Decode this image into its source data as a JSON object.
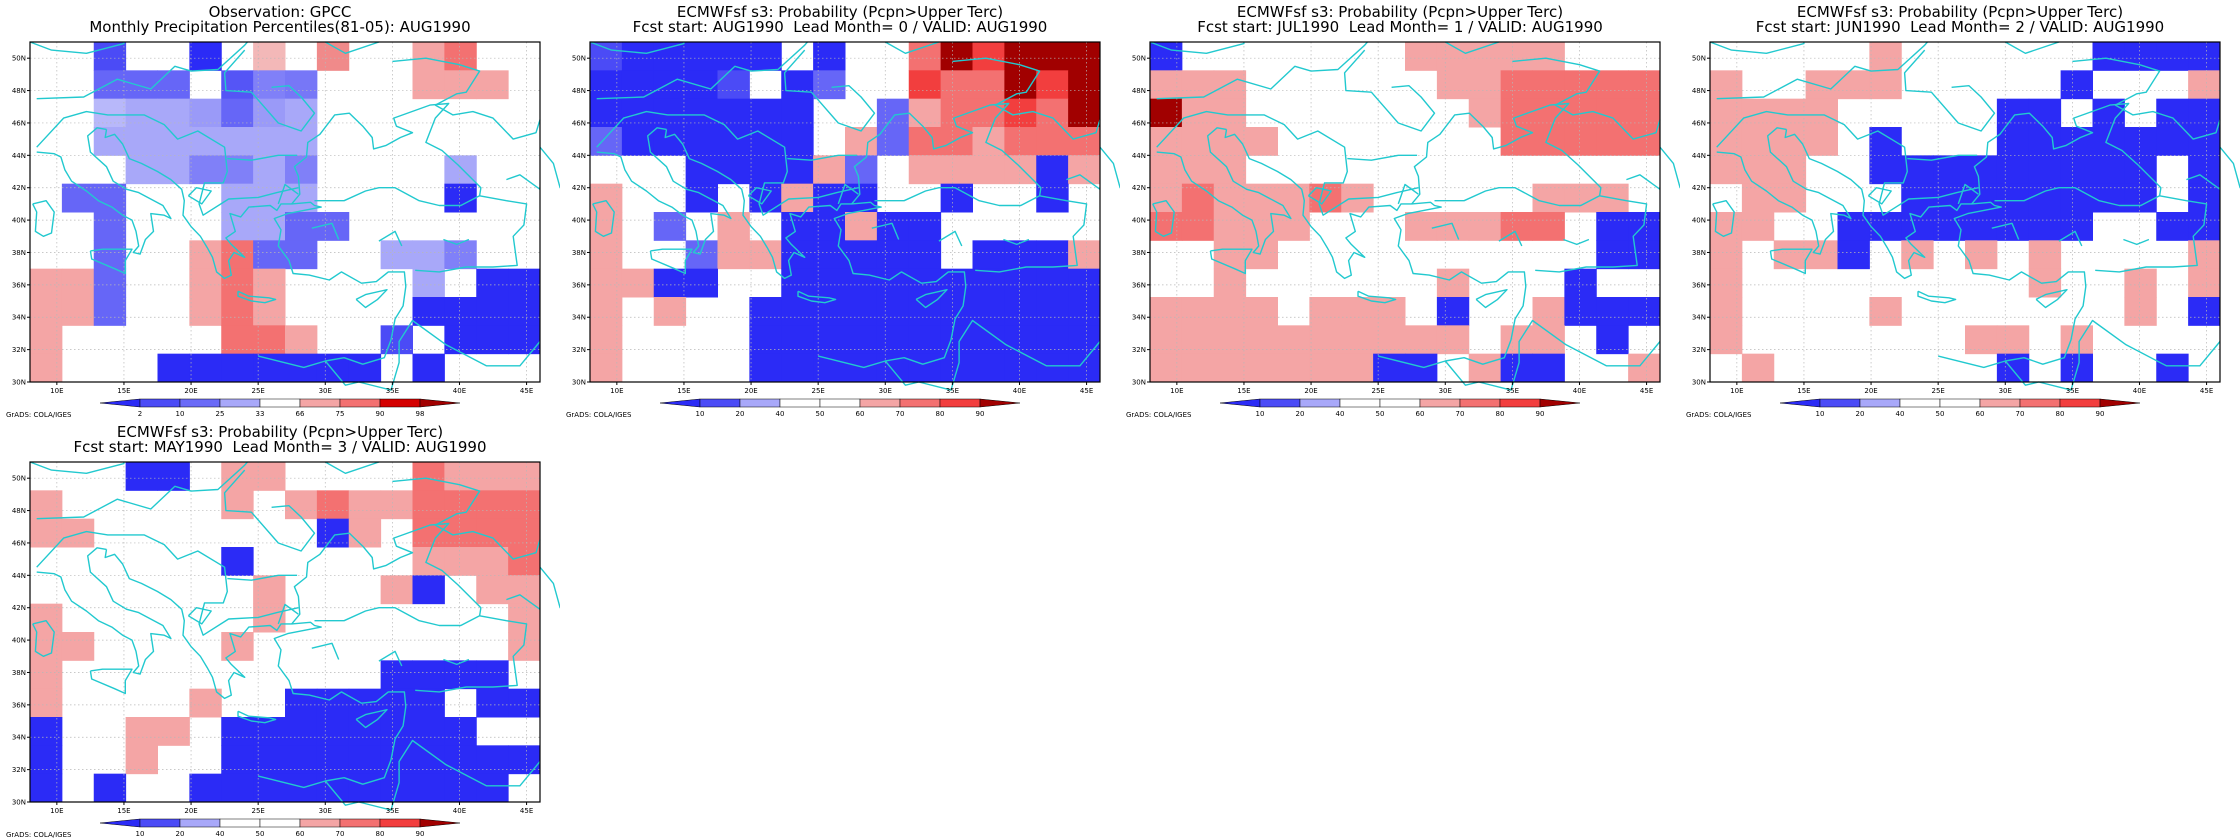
{
  "colors": {
    "frame": "#000000",
    "coast": "#22c9cf",
    "grid": "#b7b7b7",
    "lt": [
      "#2b2bf6",
      "#6666f7",
      "#a8a8f9"
    ],
    "gt": [
      "#f4a5a5",
      "#f37171",
      "#f23e3e",
      "#d40000",
      "#a10000"
    ]
  },
  "lat_ticks": [
    "30N",
    "32N",
    "34N",
    "36N",
    "38N",
    "40N",
    "42N",
    "44N",
    "46N",
    "48N",
    "50N"
  ],
  "lon_ticks": [
    "10E",
    "15E",
    "20E",
    "25E",
    "30E",
    "35E",
    "40E",
    "45E"
  ],
  "grads_credit": "GrADS: COLA/IGES",
  "panels": [
    {
      "id": "obs",
      "title1": "Observation: GPCC",
      "title2": "Monthly Precipitation Percentiles(81-05): AUG1990",
      "scale_labels": [
        "2",
        "10",
        "25",
        "33",
        "66",
        "75",
        "90",
        "98"
      ],
      "scale_colors": [
        "#2b2bf6",
        "#4b4bf6",
        "#6a6af7",
        "#a8a8f9",
        "#ffffff",
        "#f4a5a5",
        "#f37171",
        "#d40000",
        "#a10000"
      ],
      "grid_map": [
        "..B..A.h.l..+#..",
        "..aaa.Qbz...+++.",
        "..iccqaqc.......",
        "..ccccccc.......",
        "...ccbbcb....c..",
        ".aa...ccc....A..",
        "..a...ccaa......",
        "..a..+#aa..ccb..",
        "++a..+#+....c.AA",
        "++a..+#+....AAAA",
        "+.....##+..B.AAA",
        "+...AAAAAAA.A..."
      ]
    },
    {
      "id": "fc0",
      "title1": "ECMWFsf s3: Probability (Pcpn>Upper Terc)",
      "title2": "Fcst start: AUG1990  Lead Month= 0 / VALID: AUG1990",
      "scale_labels": [
        "10",
        "20",
        "40",
        "50",
        "60",
        "70",
        "80",
        "90"
      ],
      "scale_colors": [
        "#2b2bf6",
        "#4b4bf6",
        "#a8a8f9",
        "#ffffff",
        "#ffffff",
        "#f4a5a5",
        "#f37171",
        "#f23e3e",
        "#a10000"
      ],
      "grid_map": [
        "BAAAAA.A..#X*XXX",
        "AAAAB.Aa..*##X*X",
        "AAAAAAA..a+##*#X",
        "aAAAAAA.+a##+###",
        "...AAAA+a.++++A+",
        "+..A.A+AA..A..A.",
        "+.a.+.AA+AA.....",
        "+..a++AAAAA.AAA+",
        "++AA..AAAAAAAAAA",
        "+.+..AAAAAAAAAAA",
        "+....AAAAAAAAAAA",
        "+....AAAAAAAAAAA"
      ]
    },
    {
      "id": "fc1",
      "title1": "ECMWFsf s3: Probability (Pcpn>Upper Terc)",
      "title2": "Fcst start: JUL1990  Lead Month= 1 / VALID: AUG1990",
      "scale_labels": [
        "10",
        "20",
        "40",
        "50",
        "60",
        "70",
        "80",
        "90"
      ],
      "scale_colors": [
        "#2b2bf6",
        "#4b4bf6",
        "#a8a8f9",
        "#ffffff",
        "#ffffff",
        "#f4a5a5",
        "#f37171",
        "#f23e3e",
        "#a10000"
      ],
      "grid_map": [
        "A.......+++++...",
        "+++......++#####",
        "X++.......+#####",
        "++++.......#####",
        "+++.............",
        "+#+++#+.....+++.",
        "##+++...+++##.AA",
        "..++..........AA",
        "..+......+...A..",
        "++++.+++.A..+AAA",
        "++++++++++.++.A.",
        "+++++++AA.+AA..+"
      ]
    },
    {
      "id": "fc2",
      "title1": "ECMWFsf s3: Probability (Pcpn>Upper Terc)",
      "title2": "Fcst start: JUN1990  Lead Month= 2 / VALID: AUG1990",
      "scale_labels": [
        "10",
        "20",
        "40",
        "50",
        "60",
        "70",
        "80",
        "90"
      ],
      "scale_colors": [
        "#2b2bf6",
        "#4b4bf6",
        "#a8a8f9",
        "#ffffff",
        "#ffffff",
        "#f4a5a5",
        "#f37171",
        "#f23e3e",
        "#a10000"
      ],
      "grid_map": [
        ".....+......AAAA",
        "+..+++.....A...+",
        "++++.....AA.A.AA",
        "++++.A...AAAAAAA",
        "+++..AAAAAAAAA.A",
        ".++...AAAAAAAA.A",
        "++..AAAAAAAA..AA",
        "+.++A.+.+.+....+",
        "+.........+..+.+",
        "+....+.......+.A",
        "+.......++.+....",
        ".+.......A.A..A."
      ]
    },
    {
      "id": "fc3",
      "title1": "ECMWFsf s3: Probability (Pcpn>Upper Terc)",
      "title2": "Fcst start: MAY1990  Lead Month= 3 / VALID: AUG1990",
      "scale_labels": [
        "10",
        "20",
        "40",
        "50",
        "60",
        "70",
        "80",
        "90"
      ],
      "scale_colors": [
        "#2b2bf6",
        "#4b4bf6",
        "#a8a8f9",
        "#ffffff",
        "#ffffff",
        "#f4a5a5",
        "#f37171",
        "#f23e3e",
        "#a10000"
      ],
      "grid_map": [
        "...AA.++....#+++",
        "+.....+.+#++####",
        "++.......A+.####",
        "......A.....+++#",
        ".......+...+A.++",
        "+......+.......+",
        "++....+........+",
        "+..........AAAA.",
        "+....+..AAAAA.AA",
        "A..++.AAAAAAAA..",
        "A..+..AAAAAAAAAA",
        "A.A..AAAAAAAAAA."
      ]
    }
  ]
}
